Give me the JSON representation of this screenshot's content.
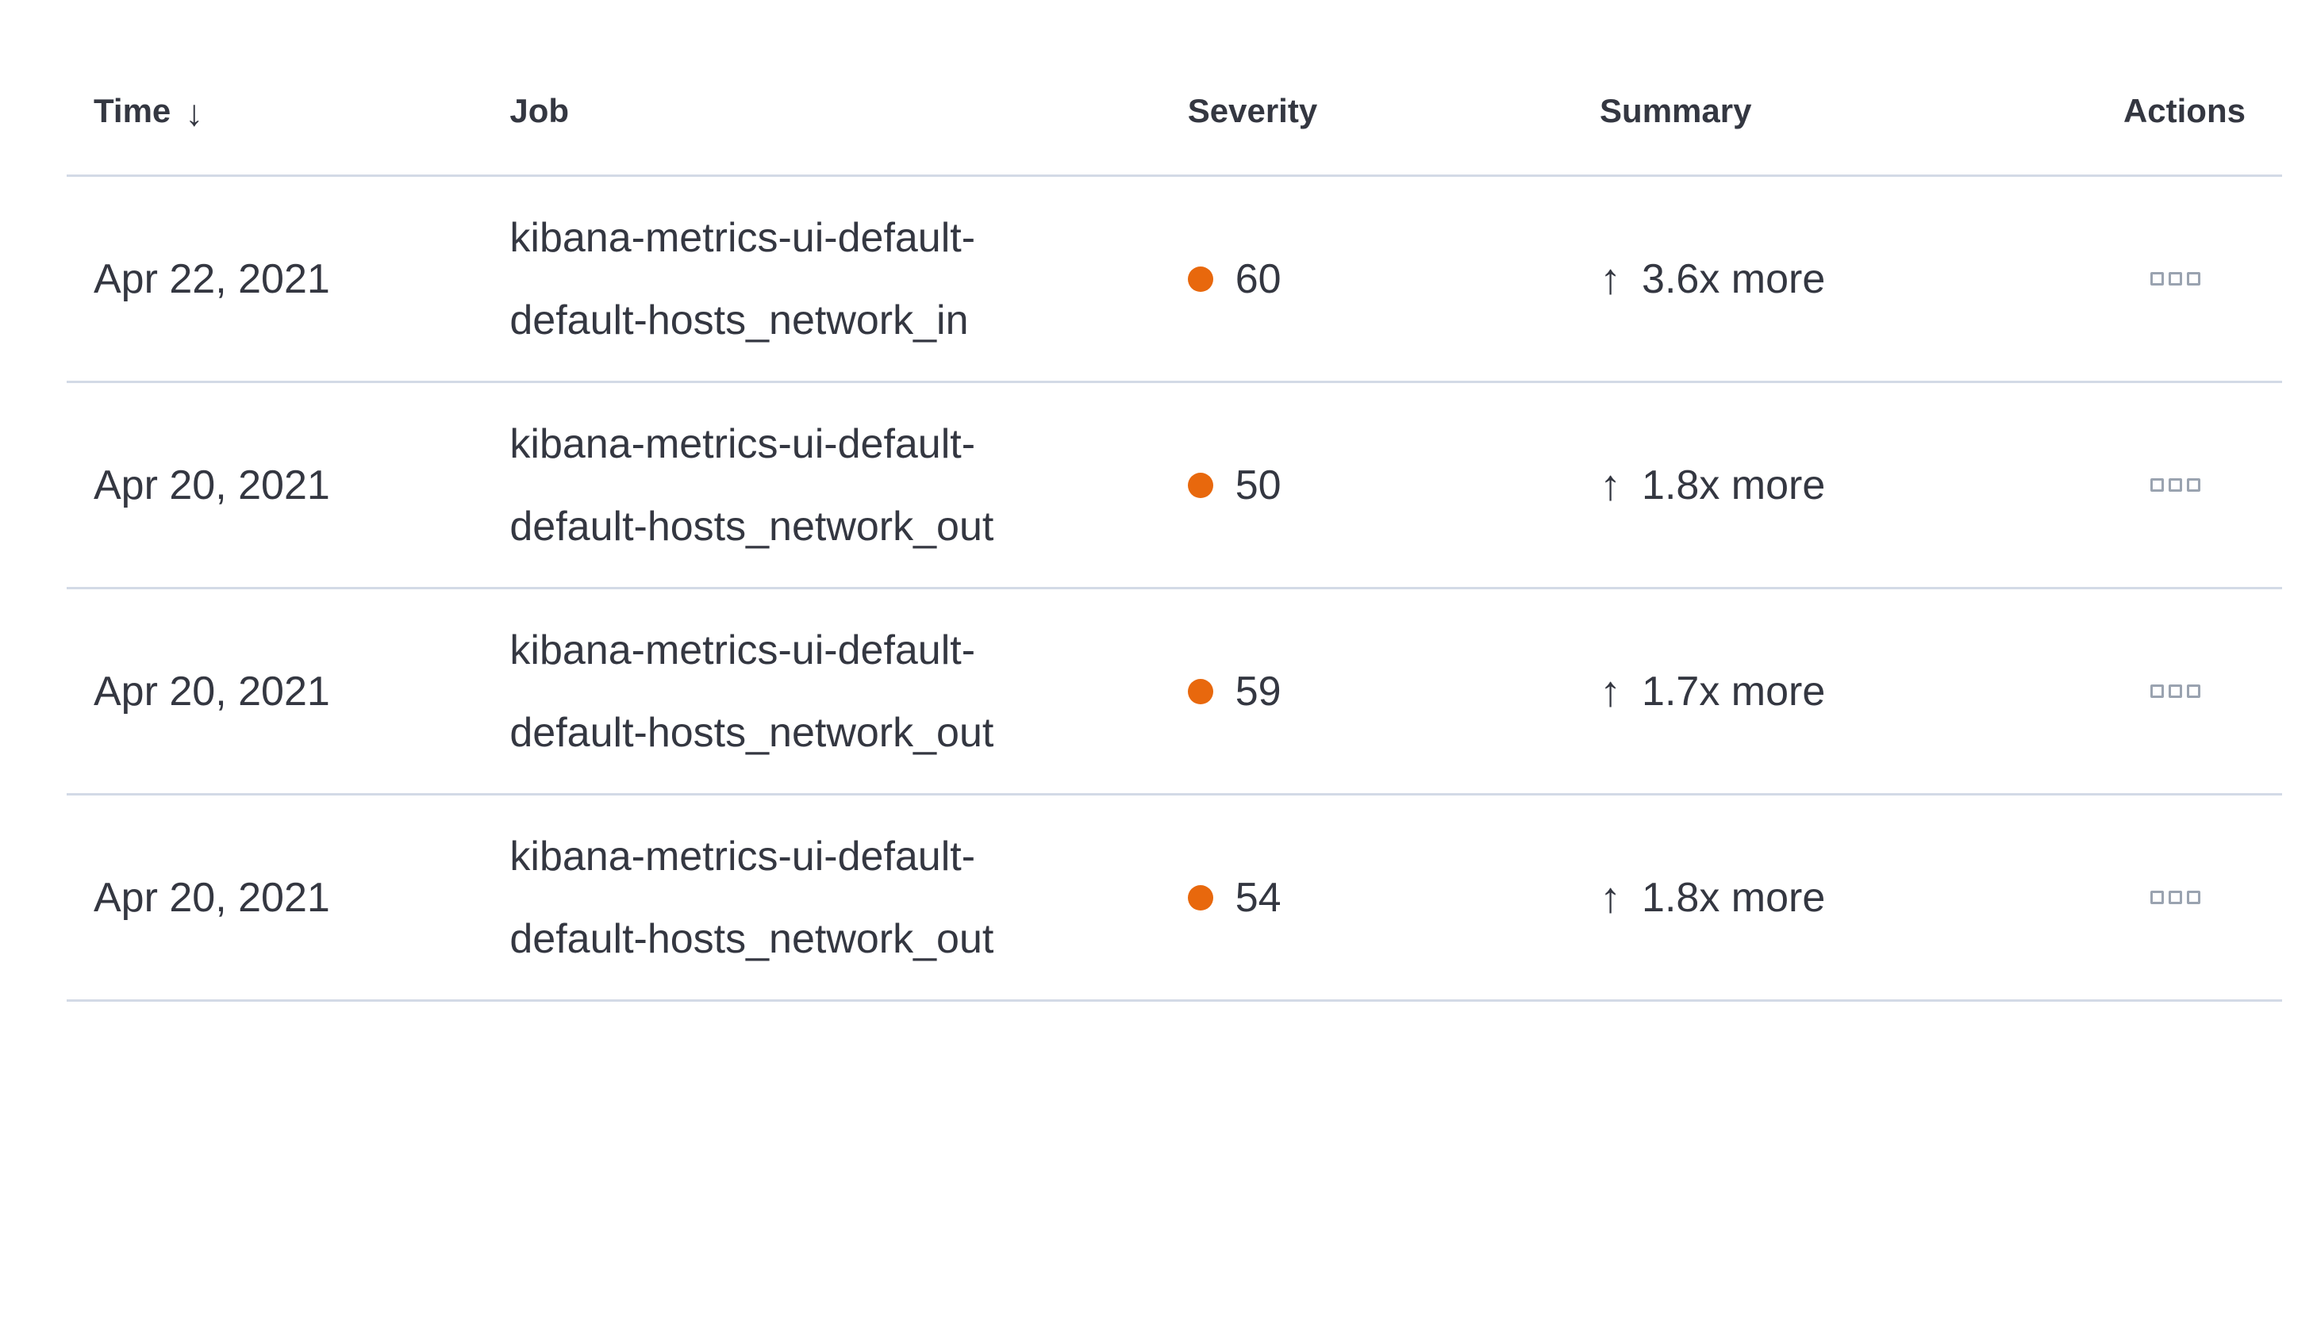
{
  "table": {
    "columns": [
      {
        "label": "Time",
        "sortable": true,
        "sort_direction": "desc"
      },
      {
        "label": "Job"
      },
      {
        "label": "Severity"
      },
      {
        "label": "Summary"
      },
      {
        "label": "Actions"
      }
    ],
    "rows": [
      {
        "time": "Apr 22, 2021",
        "job": "kibana-metrics-ui-default-default-hosts_network_in",
        "job_lines": [
          "kibana-metrics-ui-default-",
          "default-hosts_network_in"
        ],
        "severity": 60,
        "summary": "3.6x more"
      },
      {
        "time": "Apr 20, 2021",
        "job": "kibana-metrics-ui-default-default-hosts_network_out",
        "job_lines": [
          "kibana-metrics-ui-default-",
          "default-hosts_network_out"
        ],
        "severity": 50,
        "summary": "1.8x more"
      },
      {
        "time": "Apr 20, 2021",
        "job": "kibana-metrics-ui-default-default-hosts_network_out",
        "job_lines": [
          "kibana-metrics-ui-default-",
          "default-hosts_network_out"
        ],
        "severity": 59,
        "summary": "1.7x more"
      },
      {
        "time": "Apr 20, 2021",
        "job": "kibana-metrics-ui-default-default-hosts_network_out",
        "job_lines": [
          "kibana-metrics-ui-default-",
          "default-hosts_network_out"
        ],
        "severity": 54,
        "summary": "1.8x more"
      }
    ],
    "icons": {
      "sort_desc": "↓",
      "trend_up": "↑",
      "actions": "boxes-horizontal"
    },
    "colors": {
      "text": "#343741",
      "separator": "#d3dae6",
      "severity_dot": "#e8680d",
      "actions_icon": "#9aa3b0"
    }
  }
}
